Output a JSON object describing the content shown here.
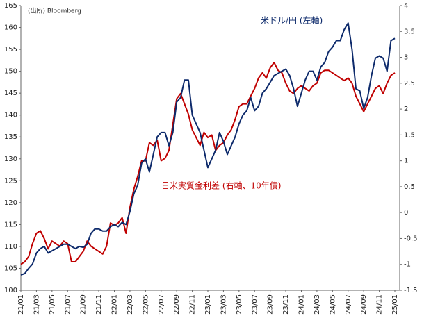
{
  "chart_data": {
    "type": "line",
    "source": "(出所) Bloomberg",
    "annotations": [
      "米ドル/円 (左軸)",
      "日米実質金利差 (右軸、10年債)"
    ],
    "categories": [
      "21/01",
      null,
      null,
      null,
      "21/03",
      null,
      null,
      null,
      "21/05",
      null,
      null,
      null,
      "21/07",
      null,
      null,
      null,
      "21/09",
      null,
      null,
      null,
      "21/11",
      null,
      null,
      null,
      "22/01",
      null,
      null,
      null,
      "22/03",
      null,
      null,
      null,
      "22/05",
      null,
      null,
      null,
      "22/07",
      null,
      null,
      null,
      "22/09",
      null,
      null,
      null,
      "22/11",
      null,
      null,
      null,
      "23/01",
      null,
      null,
      null,
      "23/03",
      null,
      null,
      null,
      "23/05",
      null,
      null,
      null,
      "23/07",
      null,
      null,
      null,
      "23/09",
      null,
      null,
      null,
      "23/11",
      null,
      null,
      null,
      "24/01",
      null,
      null,
      null,
      "24/03",
      null,
      null,
      null,
      "24/05",
      null,
      null,
      null,
      "24/07",
      null,
      null,
      null,
      "24/09",
      null,
      null,
      null,
      "24/11",
      null,
      null,
      null,
      "25/01"
    ],
    "series": [
      {
        "name": "米ドル/円",
        "color": "#0d2a6b",
        "axis": "y",
        "values": [
          103.5,
          103.8,
          105,
          106,
          108.5,
          109.5,
          110,
          108.5,
          109,
          109.5,
          110,
          110.5,
          110.5,
          110,
          109.5,
          110,
          109.8,
          110.5,
          113,
          114,
          114,
          113.5,
          113.5,
          114.5,
          115,
          114.5,
          115.5,
          115,
          118,
          122,
          124,
          129,
          130,
          127,
          131,
          135,
          136,
          136,
          133,
          136,
          143,
          144,
          148,
          148,
          140,
          138,
          136,
          132,
          128,
          130,
          132,
          136,
          134,
          131,
          133,
          135,
          138,
          140,
          141,
          144,
          141,
          142,
          145,
          146,
          147.5,
          149,
          149.5,
          150,
          150.5,
          149,
          146,
          142,
          145,
          148,
          150,
          150,
          148,
          151,
          152,
          154.5,
          155.5,
          157,
          157,
          159.5,
          161,
          155,
          146,
          145.5,
          141.5,
          144,
          149,
          153,
          153.5,
          153,
          150,
          157,
          157.5
        ]
      },
      {
        "name": "日米実質金利差",
        "color": "#c00000",
        "axis": "y2",
        "values": [
          -1,
          -0.95,
          -0.85,
          -0.6,
          -0.4,
          -0.35,
          -0.5,
          -0.7,
          -0.55,
          -0.6,
          -0.65,
          -0.55,
          -0.6,
          -0.95,
          -0.95,
          -0.85,
          -0.75,
          -0.55,
          -0.65,
          -0.7,
          -0.75,
          -0.8,
          -0.65,
          -0.2,
          -0.25,
          -0.2,
          -0.1,
          -0.4,
          0.1,
          0.45,
          0.7,
          1.0,
          1.0,
          1.35,
          1.3,
          1.4,
          1.0,
          1.05,
          1.2,
          1.7,
          2.2,
          2.3,
          2.1,
          1.9,
          1.6,
          1.45,
          1.3,
          1.55,
          1.45,
          1.5,
          1.2,
          1.3,
          1.35,
          1.5,
          1.6,
          1.8,
          2.05,
          2.1,
          2.1,
          2.25,
          2.4,
          2.6,
          2.7,
          2.6,
          2.8,
          2.9,
          2.75,
          2.7,
          2.5,
          2.35,
          2.3,
          2.4,
          2.45,
          2.4,
          2.35,
          2.45,
          2.5,
          2.7,
          2.75,
          2.75,
          2.7,
          2.65,
          2.6,
          2.55,
          2.6,
          2.5,
          2.25,
          2.1,
          1.95,
          2.1,
          2.25,
          2.4,
          2.45,
          2.3,
          2.5,
          2.65,
          2.7
        ]
      }
    ],
    "ylim": [
      100,
      165
    ],
    "yticks": [
      100,
      105,
      110,
      115,
      120,
      125,
      130,
      135,
      140,
      145,
      150,
      155,
      160,
      165
    ],
    "y2lim": [
      -1.5,
      4
    ],
    "y2ticks": [
      -1.5,
      -1,
      -0.5,
      0,
      0.5,
      1,
      1.5,
      2,
      2.5,
      3,
      3.5,
      4
    ],
    "grid": false
  }
}
